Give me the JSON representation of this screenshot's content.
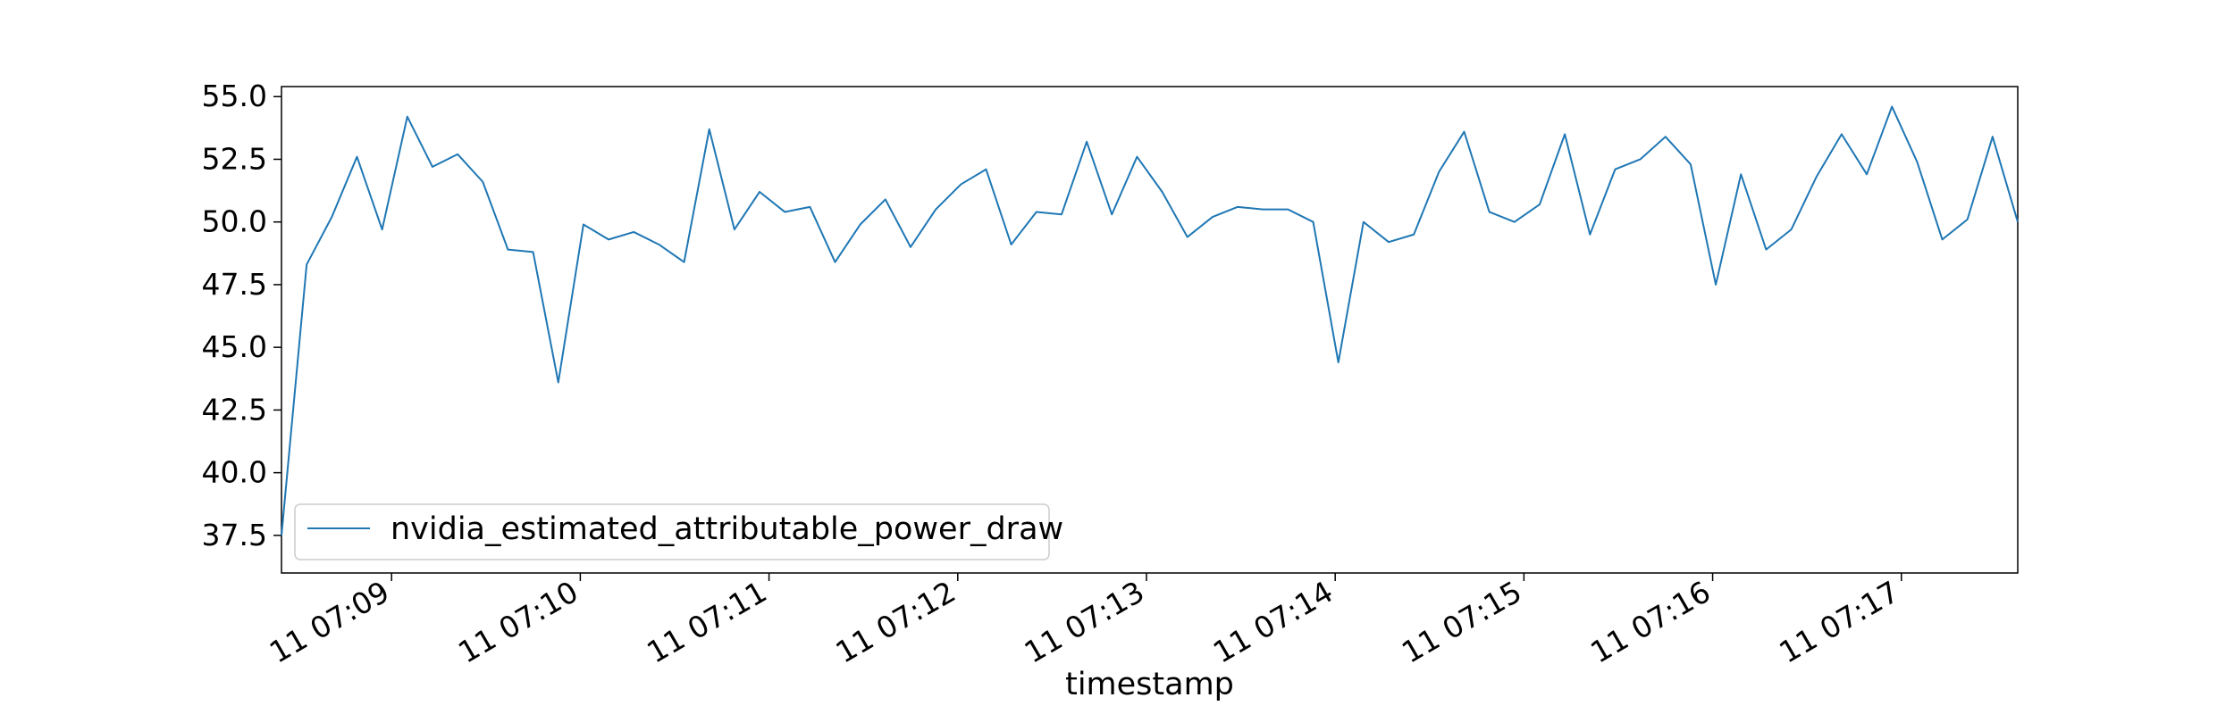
{
  "chart_data": {
    "type": "line",
    "title": "",
    "xlabel": "timestamp",
    "ylabel": "",
    "ylim": [
      36.0,
      55.4
    ],
    "y_ticks": [
      37.5,
      40.0,
      42.5,
      45.0,
      47.5,
      50.0,
      52.5,
      55.0
    ],
    "x_tick_labels": [
      "11 07:09",
      "11 07:10",
      "11 07:11",
      "11 07:12",
      "11 07:13",
      "11 07:14",
      "11 07:15",
      "11 07:16",
      "11 07:17"
    ],
    "grid": false,
    "legend": "lower-left",
    "series": [
      {
        "name": "nvidia_estimated_attributable_power_draw",
        "color": "#1f77b4",
        "x": [
          "07:08:25",
          "07:08:33",
          "07:08:41",
          "07:08:49",
          "07:08:57",
          "07:09:05",
          "07:09:13",
          "07:09:21",
          "07:09:29",
          "07:09:37",
          "07:09:45",
          "07:09:53",
          "07:10:01",
          "07:10:09",
          "07:10:17",
          "07:10:25",
          "07:10:33",
          "07:10:41",
          "07:10:49",
          "07:10:57",
          "07:11:05",
          "07:11:13",
          "07:11:21",
          "07:11:29",
          "07:11:37",
          "07:11:45",
          "07:11:53",
          "07:12:01",
          "07:12:09",
          "07:12:17",
          "07:12:25",
          "07:12:33",
          "07:12:41",
          "07:12:49",
          "07:12:57",
          "07:13:05",
          "07:13:13",
          "07:13:21",
          "07:13:29",
          "07:13:37",
          "07:13:45",
          "07:13:53",
          "07:14:01",
          "07:14:09",
          "07:14:17",
          "07:14:25",
          "07:14:33",
          "07:14:41",
          "07:14:49",
          "07:14:57",
          "07:15:05",
          "07:15:13",
          "07:15:21",
          "07:15:29",
          "07:15:37",
          "07:15:45",
          "07:15:53",
          "07:16:01",
          "07:16:09",
          "07:16:17",
          "07:16:25",
          "07:16:33",
          "07:16:41",
          "07:16:49",
          "07:16:57",
          "07:17:05",
          "07:17:13",
          "07:17:21",
          "07:17:29",
          "07:17:37"
        ],
        "values": [
          37.5,
          48.3,
          50.2,
          52.6,
          49.7,
          54.2,
          52.2,
          52.7,
          51.6,
          48.9,
          48.8,
          43.6,
          49.9,
          49.3,
          49.6,
          49.1,
          48.4,
          53.7,
          49.7,
          51.2,
          50.4,
          50.6,
          48.4,
          49.9,
          50.9,
          49.0,
          50.5,
          51.5,
          52.1,
          49.1,
          50.4,
          50.3,
          53.2,
          50.3,
          52.6,
          51.2,
          49.4,
          50.2,
          50.6,
          50.5,
          50.5,
          50.0,
          44.4,
          50.0,
          49.2,
          49.5,
          52.0,
          53.6,
          50.4,
          50.0,
          50.7,
          53.5,
          49.5,
          52.1,
          52.5,
          53.4,
          52.3,
          47.5,
          51.9,
          48.9,
          49.7,
          51.8,
          53.5,
          51.9,
          54.6,
          52.4,
          49.3,
          50.1,
          53.4,
          50.0
        ]
      }
    ]
  }
}
